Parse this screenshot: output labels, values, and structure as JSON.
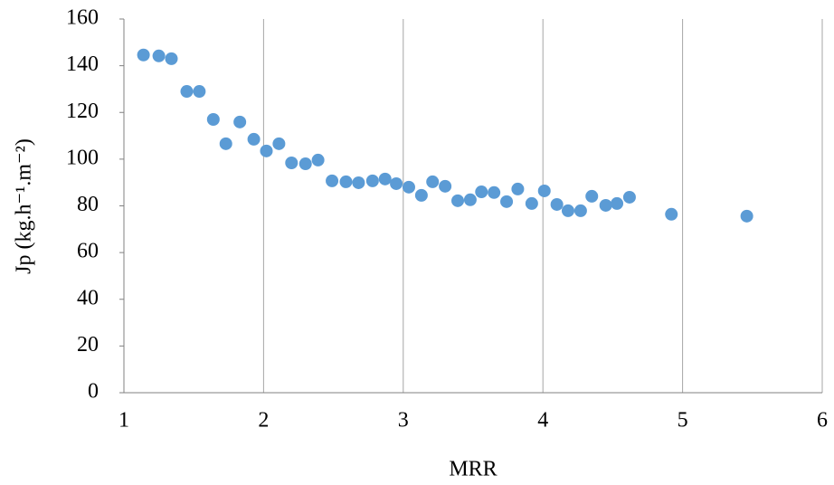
{
  "chart_data": {
    "type": "scatter",
    "x_label": "MRR",
    "y_label": "Jp (kg.h⁻¹.m⁻²)",
    "series": [
      {
        "color": "#5b9bd5",
        "x": [
          1.14,
          1.25,
          1.34,
          1.45,
          1.54,
          1.64,
          1.73,
          1.83,
          1.93,
          2.02,
          2.11,
          2.2,
          2.3,
          2.39,
          2.49,
          2.59,
          2.68,
          2.78,
          2.87,
          2.95,
          3.04,
          3.13,
          3.21,
          3.3,
          3.39,
          3.48,
          3.56,
          3.65,
          3.74,
          3.82,
          3.92,
          4.01,
          4.1,
          4.18,
          4.27,
          4.35,
          4.45,
          4.53,
          4.62,
          4.92,
          5.46
        ],
        "values": [
          144.6,
          144.2,
          143,
          129,
          129,
          117,
          106.6,
          115.9,
          108.5,
          103.5,
          106.6,
          98.4,
          98,
          99.6,
          90.7,
          90.3,
          89.9,
          90.7,
          91.5,
          89.5,
          88,
          84.5,
          90.3,
          88.4,
          82.2,
          82.6,
          86,
          85.7,
          81.8,
          87.2,
          81,
          86.4,
          80.6,
          77.9,
          77.9,
          84.1,
          80.2,
          81,
          83.7,
          76.4,
          75.6
        ]
      }
    ],
    "xlim": [
      1,
      6
    ],
    "xticks": [
      1,
      2,
      3,
      4,
      5,
      6
    ],
    "ylim": [
      0,
      160
    ],
    "yticks": [
      0,
      20,
      40,
      60,
      80,
      100,
      120,
      140,
      160
    ],
    "grid": "x"
  }
}
